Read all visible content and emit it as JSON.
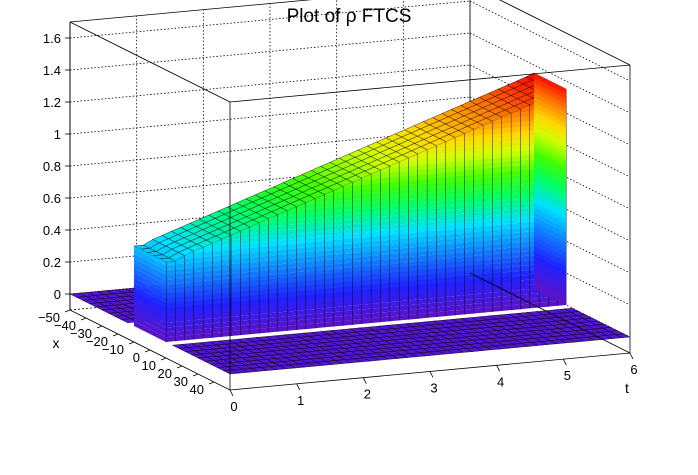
{
  "chart_data": {
    "type": "surface",
    "title": "Plot of ρ FTCS",
    "xlabel": "t",
    "ylabel": "x",
    "zlabel": "",
    "t_range": [
      0,
      6
    ],
    "x_range": [
      -50,
      50
    ],
    "z_range": [
      -0.1,
      1.7
    ],
    "t_ticks": [
      "0",
      "1",
      "2",
      "3",
      "4",
      "5",
      "6"
    ],
    "x_ticks": [
      "40",
      "30",
      "20",
      "10",
      "0",
      "−10",
      "−20",
      "−30",
      "−40",
      "−50"
    ],
    "z_ticks": [
      "0",
      "0.2",
      "0.4",
      "0.6",
      "0.8",
      "1",
      "1.2",
      "1.4",
      "1.6"
    ],
    "grid": true,
    "colormap": "rainbow (purple→blue→cyan→green→yellow→orange→red)",
    "slab": {
      "x_interval": [
        -10,
        10
      ],
      "t_values": [
        0,
        0.14,
        0.28,
        0.42,
        0.56,
        0.7,
        0.84,
        0.98,
        1.12,
        1.26,
        1.4,
        1.54,
        1.68,
        1.82,
        1.96,
        2.1,
        2.24,
        2.38,
        2.52,
        2.66,
        2.8,
        2.94,
        3.08,
        3.22,
        3.36,
        3.5,
        3.64,
        3.78,
        3.92,
        4.06,
        4.2,
        4.34,
        4.48,
        4.62,
        4.76,
        4.9,
        5.04,
        5.18,
        5.32,
        5.46,
        5.6,
        5.74,
        5.88,
        6.0
      ],
      "rho_values": [
        0.5,
        0.5,
        0.53,
        0.55,
        0.57,
        0.59,
        0.61,
        0.63,
        0.65,
        0.67,
        0.69,
        0.71,
        0.73,
        0.75,
        0.77,
        0.79,
        0.81,
        0.83,
        0.85,
        0.87,
        0.89,
        0.91,
        0.93,
        0.95,
        0.97,
        0.99,
        1.01,
        1.03,
        1.05,
        1.07,
        1.09,
        1.11,
        1.13,
        1.15,
        1.17,
        1.19,
        1.21,
        1.23,
        1.25,
        1.27,
        1.29,
        1.31,
        1.33,
        1.35
      ],
      "outside_value": 0
    }
  }
}
